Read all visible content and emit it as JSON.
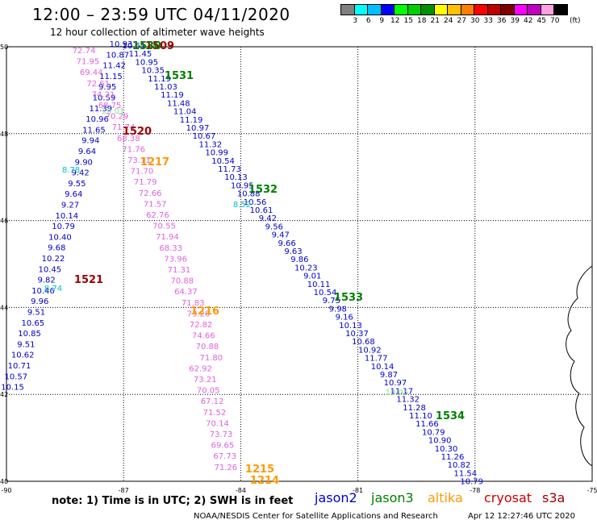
{
  "header": {
    "title": "12:00 – 23:59 UTC 04/11/2020",
    "subtitle": "12 hour collection of altimeter wave heights"
  },
  "colorbar": {
    "colors": [
      "#808080",
      "#00ffff",
      "#00bfff",
      "#0000ff",
      "#00ff00",
      "#00d000",
      "#009000",
      "#ffff00",
      "#ffc000",
      "#ff8000",
      "#ff0000",
      "#c00000",
      "#800000",
      "#ff00ff",
      "#c000c0",
      "#ffa0e0",
      "#000000"
    ],
    "labels": [
      "3",
      "6",
      "9",
      "12",
      "15",
      "18",
      "21",
      "24",
      "27",
      "30",
      "33",
      "36",
      "39",
      "42",
      "45",
      "70"
    ],
    "unit": "(ft)"
  },
  "axes": {
    "lat_labels": [
      "40",
      "42",
      "44",
      "46",
      "48",
      "50"
    ],
    "lon_labels": [
      "-90",
      "-87",
      "-84",
      "-81",
      "-78",
      "-75"
    ],
    "lat_range": [
      40,
      50
    ],
    "lon_range": [
      -90,
      -75
    ]
  },
  "tracks": [
    {
      "color": "#e060e0",
      "values": [
        "72.74",
        "71.95",
        "69.44",
        "72.61",
        "74.21",
        "68.75",
        "70.29",
        "71.74",
        "68.38",
        "71.76",
        "73.11",
        "71.70",
        "71.79",
        "72.66",
        "71.57",
        "62.76",
        "70.55",
        "71.94",
        "68.33",
        "73.96",
        "71.31",
        "70.88",
        "64.37",
        "71.83",
        "73.20",
        "72.82",
        "74.66",
        "70.88",
        "71.80",
        "62.92",
        "73.21",
        "70.05",
        "67.12",
        "71.52",
        "70.14",
        "73.73",
        "69.65",
        "67.73",
        "71.26"
      ]
    },
    {
      "color": "#0000cc",
      "values": [
        "10.93",
        "10.87",
        "11.42",
        "11.15",
        "9.95",
        "10.59",
        "11.39",
        "10.96",
        "11.65",
        "9.94",
        "9.64",
        "9.90",
        "9.42",
        "9.55",
        "9.64",
        "9.27",
        "10.14",
        "10.79",
        "10.40",
        "9.68",
        "10.22",
        "10.45",
        "9.82",
        "10.46",
        "9.96",
        "9.51",
        "10.65",
        "10.85",
        "9.51",
        "10.62",
        "10.71",
        "10.57",
        "10.15"
      ]
    },
    {
      "color": "#0000cc",
      "values": [
        "10.61",
        "11.45",
        "10.95",
        "10.35",
        "11.19",
        "11.03",
        "11.19",
        "11.48",
        "11.04",
        "11.19",
        "10.97",
        "10.67",
        "11.32",
        "10.99",
        "10.54",
        "11.73",
        "10.13",
        "10.95",
        "10.88",
        "10.56",
        "10.61",
        "9.42",
        "9.56",
        "9.47",
        "9.66",
        "9.63",
        "9.86",
        "10.23",
        "9.01",
        "10.11",
        "10.54",
        "9.75",
        "9.98",
        "9.16",
        "10.13",
        "10.37",
        "10.68",
        "10.92",
        "11.77",
        "10.14",
        "9.87",
        "10.97",
        "11.17",
        "11.32",
        "11.28",
        "11.10",
        "11.66",
        "10.79",
        "10.90",
        "10.30",
        "11.26",
        "10.82",
        "11.54",
        "10.79"
      ]
    },
    {
      "color": "#00c0c0",
      "values": [
        "8.78",
        "8.52",
        "8.74"
      ]
    },
    {
      "color": "#90e090",
      "values": [
        "10.01",
        "10.05"
      ]
    }
  ],
  "track_labels": [
    {
      "text": "1509",
      "color": "#a00000"
    },
    {
      "text": "1530",
      "color": "#008000"
    },
    {
      "text": "1531",
      "color": "#008000"
    },
    {
      "text": "1520",
      "color": "#a00000"
    },
    {
      "text": "1217",
      "color": "#ff9900"
    },
    {
      "text": "1532",
      "color": "#008000"
    },
    {
      "text": "1521",
      "color": "#a00000"
    },
    {
      "text": "1533",
      "color": "#008000"
    },
    {
      "text": "1216",
      "color": "#ff9900"
    },
    {
      "text": "1534",
      "color": "#008000"
    },
    {
      "text": "1215",
      "color": "#ff9900"
    },
    {
      "text": "1214",
      "color": "#ff9900"
    }
  ],
  "footer": {
    "note": "note:  1) Time is in UTC;  2) SWH is in feet",
    "legend": [
      {
        "name": "jason2",
        "color": "#0000cc"
      },
      {
        "name": "jason3",
        "color": "#008000"
      },
      {
        "name": "altika",
        "color": "#ff9900"
      },
      {
        "name": "cryosat",
        "color": "#cc0000"
      },
      {
        "name": "s3a",
        "color": "#a00000"
      }
    ],
    "credit": "NOAA/NESDIS Center for Satellite Applications and Research",
    "timestamp": "Apr 12 12:27:46 UTC 2020"
  }
}
